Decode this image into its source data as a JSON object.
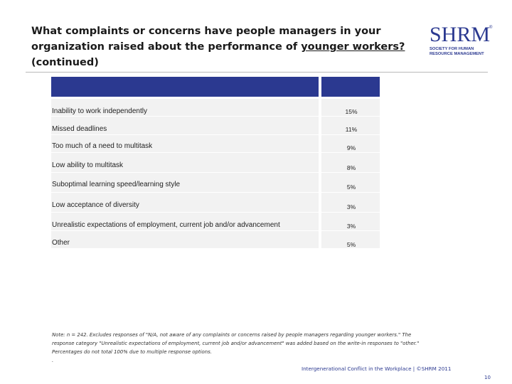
{
  "slide": {
    "title_part1": "What complaints or concerns have people managers in your organization raised about the performance of ",
    "title_underlined": "younger workers?",
    "title_part2": " (continued)"
  },
  "logo": {
    "mark": "SHRM",
    "registered": "®",
    "line1": "SOCIETY FOR HUMAN",
    "line2": "RESOURCE MANAGEMENT"
  },
  "table": {
    "header_color": "#2b3990",
    "rows": [
      {
        "label": "Inability to work independently",
        "value": "15%"
      },
      {
        "label": "Missed deadlines",
        "value": "11%"
      },
      {
        "label": "Too much of a need to multitask",
        "value": "9%"
      },
      {
        "label": "Low ability to multitask",
        "value": "8%"
      },
      {
        "label": "Suboptimal learning speed/learning style",
        "value": "5%"
      },
      {
        "label": "Low acceptance of diversity",
        "value": "3%"
      },
      {
        "label": "Unrealistic expectations of employment, current job and/or advancement",
        "value": "3%"
      },
      {
        "label": "Other",
        "value": "5%"
      }
    ]
  },
  "note": {
    "line1": "Note: n = 242. Excludes responses of \"N/A, not aware of any complaints or concerns raised by people managers regarding younger workers.\" The",
    "line2": "response category \"Unrealistic expectations of employment, current job and/or advancement\" was added based on the write-in responses to \"other.\"",
    "line3": "Percentages do not total 100% due to multiple response options.",
    "line4": "."
  },
  "footer": {
    "text": "Intergenerational Conflict in the Workplace | ©SHRM 2011",
    "page": "10"
  }
}
